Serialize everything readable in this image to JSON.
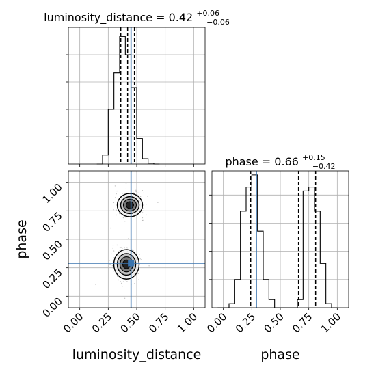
{
  "chart_data": {
    "type": "corner",
    "colors": {
      "truth": "#3b75af",
      "line": "#000000",
      "grid": "#b0b0b0",
      "samples": "#555555"
    },
    "parameters": [
      {
        "name": "luminosity_distance",
        "title": "luminosity_distance = 0.42",
        "median": 0.42,
        "err_plus": "+0.06",
        "err_minus": "−0.06",
        "truth": 0.45
      },
      {
        "name": "phase",
        "title": "phase = 0.66",
        "median": 0.66,
        "err_plus": "+0.15",
        "err_minus": "−0.42",
        "truth": 0.29
      }
    ],
    "axis_range": [
      -0.1,
      1.1
    ],
    "ticks": [
      0.0,
      0.25,
      0.5,
      0.75,
      1.0
    ],
    "tick_labels": [
      "0.00",
      "0.25",
      "0.50",
      "0.75",
      "1.00"
    ],
    "xlabels": [
      "luminosity_distance",
      "phase"
    ],
    "ylabel": "phase",
    "grid": true,
    "hist_luminosity_distance": {
      "bin_edges": [
        0.15,
        0.2,
        0.25,
        0.3,
        0.35,
        0.4,
        0.45,
        0.5,
        0.55,
        0.6,
        0.65,
        0.7
      ],
      "values": [
        0,
        0.05,
        0.3,
        0.5,
        0.7,
        0.6,
        0.42,
        0.14,
        0.03,
        0.005,
        0
      ],
      "ymax": 0.75,
      "quantiles": [
        0.36,
        0.42,
        0.48
      ]
    },
    "hist_phase": {
      "bin_edges": [
        -0.05,
        0.0,
        0.05,
        0.1,
        0.15,
        0.2,
        0.25,
        0.3,
        0.35,
        0.4,
        0.45,
        0.5,
        0.55,
        0.6,
        0.65,
        0.7,
        0.75,
        0.8,
        0.85,
        0.9,
        0.95,
        1.0
      ],
      "values": [
        0,
        0,
        0.01,
        0.07,
        0.24,
        0.3,
        0.33,
        0.19,
        0.07,
        0.02,
        0,
        0,
        0,
        0,
        0.02,
        0.29,
        0.3,
        0.24,
        0.11,
        0.01,
        0
      ],
      "ymax": 0.34,
      "quantiles": [
        0.24,
        0.66,
        0.81
      ]
    },
    "density_2d": [
      {
        "center": [
          0.44,
          0.8
        ],
        "spread": [
          0.06,
          0.055
        ]
      },
      {
        "center": [
          0.41,
          0.28
        ],
        "spread": [
          0.06,
          0.07
        ]
      }
    ]
  }
}
